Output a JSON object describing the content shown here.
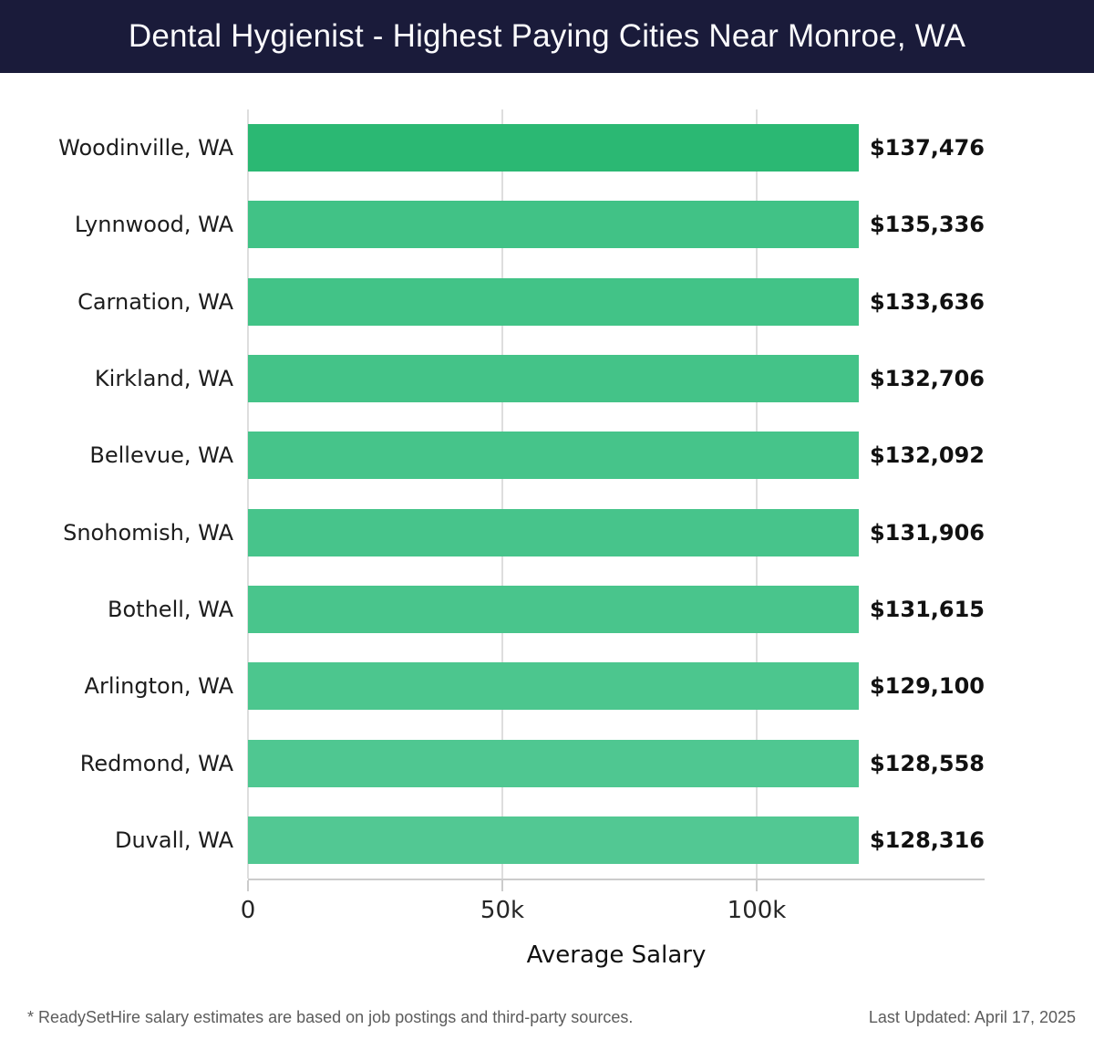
{
  "header": {
    "title": "Dental Hygienist - Highest Paying Cities Near Monroe, WA",
    "background_color": "#1a1b3a",
    "text_color": "#fbfbfd"
  },
  "chart_data": {
    "type": "bar",
    "orientation": "horizontal",
    "title": "Dental Hygienist - Highest Paying Cities Near Monroe, WA",
    "categories": [
      "Woodinville, WA",
      "Lynnwood, WA",
      "Carnation, WA",
      "Kirkland, WA",
      "Bellevue, WA",
      "Snohomish, WA",
      "Bothell, WA",
      "Arlington, WA",
      "Redmond, WA",
      "Duvall, WA"
    ],
    "values": [
      137476,
      135336,
      133636,
      132706,
      132092,
      131906,
      131615,
      129100,
      128558,
      128316
    ],
    "value_labels": [
      "$137,476",
      "$135,336",
      "$133,636",
      "$132,706",
      "$132,092",
      "$131,906",
      "$131,615",
      "$129,100",
      "$128,558",
      "$128,316"
    ],
    "bar_colors": [
      "#2bb873",
      "#41c286",
      "#42c387",
      "#44c388",
      "#46c48a",
      "#47c48b",
      "#49c58c",
      "#4cc68e",
      "#4fc791",
      "#52c893"
    ],
    "xlabel": "Average Salary",
    "ylabel": "",
    "xlim": [
      0,
      144800
    ],
    "xticks": [
      {
        "value": 0,
        "label": "0"
      },
      {
        "value": 50000,
        "label": "50k"
      },
      {
        "value": 100000,
        "label": "100k"
      }
    ],
    "grid": "vertical",
    "legend": "none"
  },
  "footer": {
    "note": "* ReadySetHire salary estimates are based on job postings and third-party sources.",
    "last_updated": "Last Updated: April 17, 2025"
  },
  "colors": {
    "bar_highlight": "#2bb873",
    "bar_default": "#49c58c",
    "gridline": "#dedede",
    "axis_line": "#cccccc",
    "category_text": "#1c1c1c",
    "value_text": "#111111",
    "tick_text": "#262626",
    "footer_text": "#5c5c5c"
  }
}
